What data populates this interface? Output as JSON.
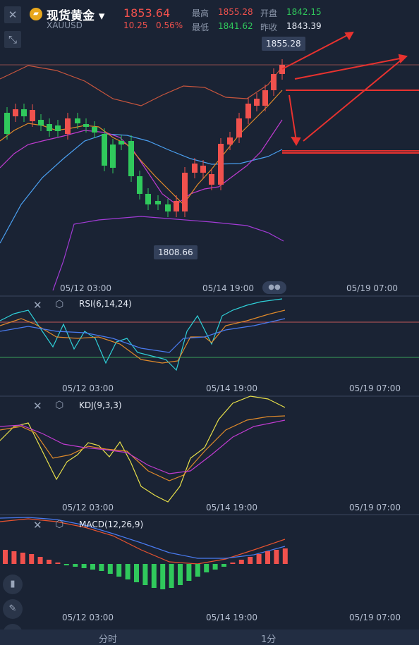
{
  "header": {
    "icon": "gold-bars-icon",
    "name": "现货黄金",
    "symbol": "XAUUSD",
    "price": "1853.64",
    "change": "10.25",
    "change_pct": "0.56%",
    "high_label": "最高",
    "high": "1855.28",
    "low_label": "最低",
    "low": "1841.62",
    "open_label": "开盘",
    "open": "1842.15",
    "prev_label": "昨收",
    "prev": "1843.39"
  },
  "chart": {
    "max_tag": "1855.28",
    "min_tag": "1808.66",
    "x_labels": [
      "05/12 03:00",
      "05/14 19:00",
      "05/19 07:00"
    ]
  },
  "indicators": {
    "rsi": "RSI(6,14,24)",
    "kdj": "KDJ(9,3,3)",
    "macd": "MACD(12,26,9)"
  },
  "footer": {
    "tab_time": "分时",
    "tab_1m": "1分"
  },
  "colors": {
    "up": "#f0514d",
    "down": "#30c95c",
    "bg": "#1a2334"
  }
}
